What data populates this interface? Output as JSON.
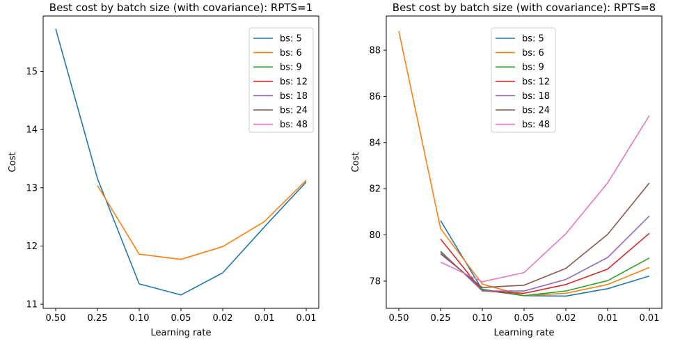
{
  "chart_data": [
    {
      "type": "line",
      "title": "Best cost by batch size (with covariance): RPTS=1",
      "xlabel": "Learning rate",
      "ylabel": "Cost",
      "x_ticks": [
        "0.50",
        "0.25",
        "0.10",
        "0.05",
        "0.02",
        "0.01",
        "0.01"
      ],
      "y_ticks": [
        "11",
        "12",
        "13",
        "14",
        "15"
      ],
      "ylim": [
        10.93,
        15.95
      ],
      "grid": false,
      "legend_position": "top-right",
      "series": [
        {
          "name": "bs: 5",
          "color": "#1f77b4",
          "values": [
            15.73,
            13.16,
            11.35,
            11.16,
            11.54,
            12.33,
            13.1
          ]
        },
        {
          "name": "bs: 6",
          "color": "#ff7f0e",
          "values": [
            null,
            13.04,
            11.86,
            11.77,
            11.99,
            12.42,
            13.13
          ]
        },
        {
          "name": "bs: 9",
          "color": "#2ca02c",
          "values": []
        },
        {
          "name": "bs: 12",
          "color": "#d62728",
          "values": []
        },
        {
          "name": "bs: 18",
          "color": "#9467bd",
          "values": []
        },
        {
          "name": "bs: 24",
          "color": "#8c564b",
          "values": []
        },
        {
          "name": "bs: 48",
          "color": "#e377c2",
          "values": []
        }
      ]
    },
    {
      "type": "line",
      "title": "Best cost by batch size (with covariance): RPTS=8",
      "xlabel": "Learning rate",
      "ylabel": "Cost",
      "x_ticks": [
        "0.50",
        "0.25",
        "0.10",
        "0.05",
        "0.02",
        "0.01",
        "0.01"
      ],
      "y_ticks": [
        "78",
        "80",
        "82",
        "84",
        "86",
        "88"
      ],
      "ylim": [
        76.82,
        89.48
      ],
      "grid": false,
      "legend_position": "top-center",
      "series": [
        {
          "name": "bs: 5",
          "color": "#1f77b4",
          "values": [
            null,
            80.62,
            77.62,
            77.37,
            77.35,
            77.67,
            78.22
          ]
        },
        {
          "name": "bs: 6",
          "color": "#ff7f0e",
          "values": [
            88.83,
            80.27,
            77.87,
            77.37,
            77.47,
            77.85,
            78.59
          ]
        },
        {
          "name": "bs: 9",
          "color": "#2ca02c",
          "values": [
            null,
            79.25,
            77.65,
            77.37,
            77.57,
            78.02,
            79.0
          ]
        },
        {
          "name": "bs: 12",
          "color": "#d62728",
          "values": [
            null,
            79.82,
            77.57,
            77.47,
            77.85,
            78.52,
            80.07
          ]
        },
        {
          "name": "bs: 18",
          "color": "#9467bd",
          "values": [
            null,
            79.3,
            77.57,
            77.57,
            78.07,
            79.02,
            80.82
          ]
        },
        {
          "name": "bs: 24",
          "color": "#8c564b",
          "values": [
            null,
            79.18,
            77.72,
            77.82,
            78.55,
            80.02,
            82.25
          ]
        },
        {
          "name": "bs: 48",
          "color": "#e377c2",
          "values": [
            null,
            78.82,
            77.97,
            78.37,
            80.05,
            82.25,
            85.17
          ]
        }
      ]
    }
  ]
}
